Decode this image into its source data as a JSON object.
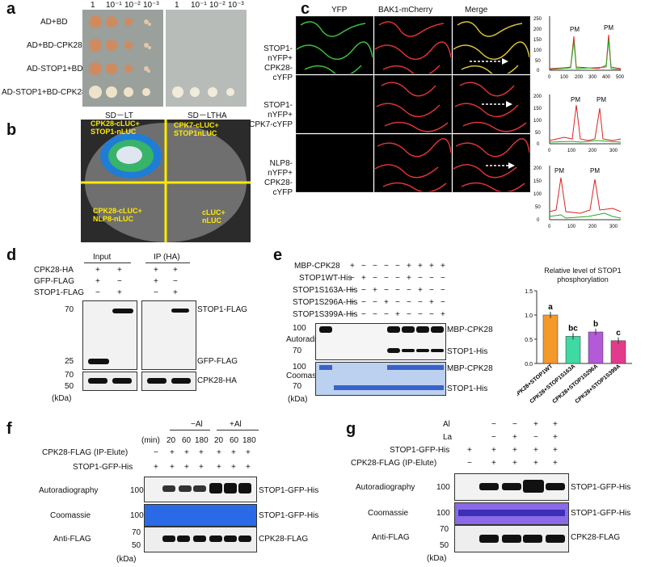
{
  "panels": {
    "a": "a",
    "b": "b",
    "c": "c",
    "d": "d",
    "e": "e",
    "f": "f",
    "g": "g"
  },
  "a": {
    "dilutions_left": [
      "1",
      "10⁻¹",
      "10⁻²",
      "10⁻³"
    ],
    "dilutions_right": [
      "1",
      "10⁻¹",
      "10⁻²",
      "10⁻³"
    ],
    "rows": [
      "AD+BD",
      "AD+BD-CPK28",
      "AD-STOP1+BD",
      "AD-STOP1+BD-CPK28"
    ],
    "media": [
      "SD－LT",
      "SD－LTHA"
    ]
  },
  "b": {
    "q1": "CPK28-cLUC+ STOP1-nLUC",
    "q2": "CPK7-cLUC+ STOP1nLUC",
    "q3": "CPK28-cLUC+ NLP8-nLUC",
    "q4": "cLUC+ nLUC"
  },
  "c": {
    "cols": [
      "YFP",
      "BAK1-mCherry",
      "Merge"
    ],
    "rows": [
      "STOP1-nYFP+ CPK28-cYFP",
      "STOP1-nYFP+ CPK7-cYFP",
      "NLP8-nYFP+ CPK28-cYFP"
    ],
    "plot1": {
      "yticks": [
        "0",
        "50",
        "100",
        "150",
        "200",
        "250"
      ],
      "xticks": [
        "0",
        "100",
        "200",
        "300",
        "400",
        "500"
      ],
      "peaks": [
        "PM",
        "PM"
      ]
    },
    "plot2": {
      "yticks": [
        "0",
        "50",
        "100",
        "150",
        "200"
      ],
      "xticks": [
        "0",
        "100",
        "200",
        "300"
      ],
      "peaks": [
        "PM",
        "PM"
      ]
    },
    "plot3": {
      "yticks": [
        "0",
        "50",
        "100",
        "150",
        "200"
      ],
      "xticks": [
        "0",
        "100",
        "200",
        "300"
      ],
      "peaks": [
        "PM",
        "PM"
      ]
    }
  },
  "d": {
    "headers": [
      "Input",
      "IP (HA)"
    ],
    "rows": [
      {
        "label": "CPK28-HA",
        "signs": [
          "+",
          "+",
          "+",
          "+"
        ]
      },
      {
        "label": "GFP-FLAG",
        "signs": [
          "+",
          "−",
          "+",
          "−"
        ]
      },
      {
        "label": "STOP1-FLAG",
        "signs": [
          "−",
          "+",
          "−",
          "+"
        ]
      }
    ],
    "mw_top": [
      "70",
      "25"
    ],
    "mw_bottom": [
      "70",
      "50"
    ],
    "kda": "(kDa)",
    "right_labels": [
      "STOP1-FLAG",
      "GFP-FLAG",
      "CPK28-HA"
    ]
  },
  "e": {
    "rows": [
      {
        "label": "MBP-CPK28",
        "signs": [
          "+",
          "−",
          "−",
          "−",
          "−",
          "+",
          "+",
          "+",
          "+"
        ]
      },
      {
        "label": "STOP1WT-His",
        "signs": [
          "−",
          "+",
          "−",
          "−",
          "−",
          "+",
          "−",
          "−",
          "−"
        ]
      },
      {
        "label": "STOP1S163A-His",
        "signs": [
          "−",
          "−",
          "+",
          "−",
          "−",
          "−",
          "+",
          "−",
          "−"
        ]
      },
      {
        "label": "STOP1S296A-His",
        "signs": [
          "−",
          "−",
          "−",
          "+",
          "−",
          "−",
          "−",
          "+",
          "−"
        ]
      },
      {
        "label": "STOP1S399A-His",
        "signs": [
          "−",
          "−",
          "−",
          "−",
          "+",
          "−",
          "−",
          "−",
          "+"
        ]
      }
    ],
    "autoradiography": "Autoradiography",
    "coomassie": "Coomassie",
    "mw_auto": [
      "100",
      "70"
    ],
    "mw_coom": [
      "100",
      "70"
    ],
    "kda": "(kDa)",
    "right_auto": [
      "MBP-CPK28",
      "STOP1-His"
    ],
    "right_coom": [
      "MBP-CPK28",
      "STOP1-His"
    ]
  },
  "chart_data": {
    "type": "bar",
    "ylabel": "Relative level of STOP1 phosphorylation",
    "ylim": [
      0,
      1.5
    ],
    "yticks": [
      "0.0",
      "0.5",
      "1.0",
      "1.5"
    ],
    "categories": [
      "CPK28+STOP1WT",
      "CPK28+STOP1S163A",
      "CPK28+STOP1S296A",
      "CPK28+STOP1S399A"
    ],
    "values": [
      1.0,
      0.56,
      0.65,
      0.47
    ],
    "letters": [
      "a",
      "bc",
      "b",
      "c"
    ],
    "colors": [
      "#f39a2b",
      "#3fd9a3",
      "#b25ad8",
      "#e43a8c"
    ]
  },
  "f": {
    "conditions": [
      "−Al",
      "+Al"
    ],
    "min_label": "(min)",
    "times": [
      "20",
      "60",
      "180",
      "20",
      "60",
      "180"
    ],
    "rows": [
      {
        "label": "CPK28-FLAG (IP-Elute)",
        "signs": [
          "−",
          "+",
          "+",
          "+",
          "+",
          "+",
          "+"
        ]
      },
      {
        "label": "STOP1-GFP-His",
        "signs": [
          "+",
          "+",
          "+",
          "+",
          "+",
          "+",
          "+"
        ]
      }
    ],
    "blots": [
      "Autoradiography",
      "Coomassie",
      "Anti-FLAG"
    ],
    "mw": [
      "100",
      "100",
      "70",
      "50"
    ],
    "kda": "(kDa)",
    "right": [
      "STOP1-GFP-His",
      "STOP1-GFP-His",
      "CPK28-FLAG"
    ]
  },
  "g": {
    "rows": [
      {
        "label": "Al",
        "signs": [
          "",
          "−",
          "−",
          "+",
          "+"
        ]
      },
      {
        "label": "La",
        "signs": [
          "",
          "−",
          "+",
          "−",
          "+"
        ]
      },
      {
        "label": "STOP1-GFP-His",
        "signs": [
          "+",
          "+",
          "+",
          "+",
          "+"
        ]
      },
      {
        "label": "CPK28-FLAG (IP-Elute)",
        "signs": [
          "−",
          "+",
          "+",
          "+",
          "+"
        ]
      }
    ],
    "blots": [
      "Autoradiography",
      "Coomassie",
      "Anti-FLAG"
    ],
    "mw": [
      "100",
      "100",
      "70",
      "50"
    ],
    "kda": "(kDa)",
    "right": [
      "STOP1-GFP-His",
      "STOP1-GFP-His",
      "CPK28-FLAG"
    ]
  }
}
